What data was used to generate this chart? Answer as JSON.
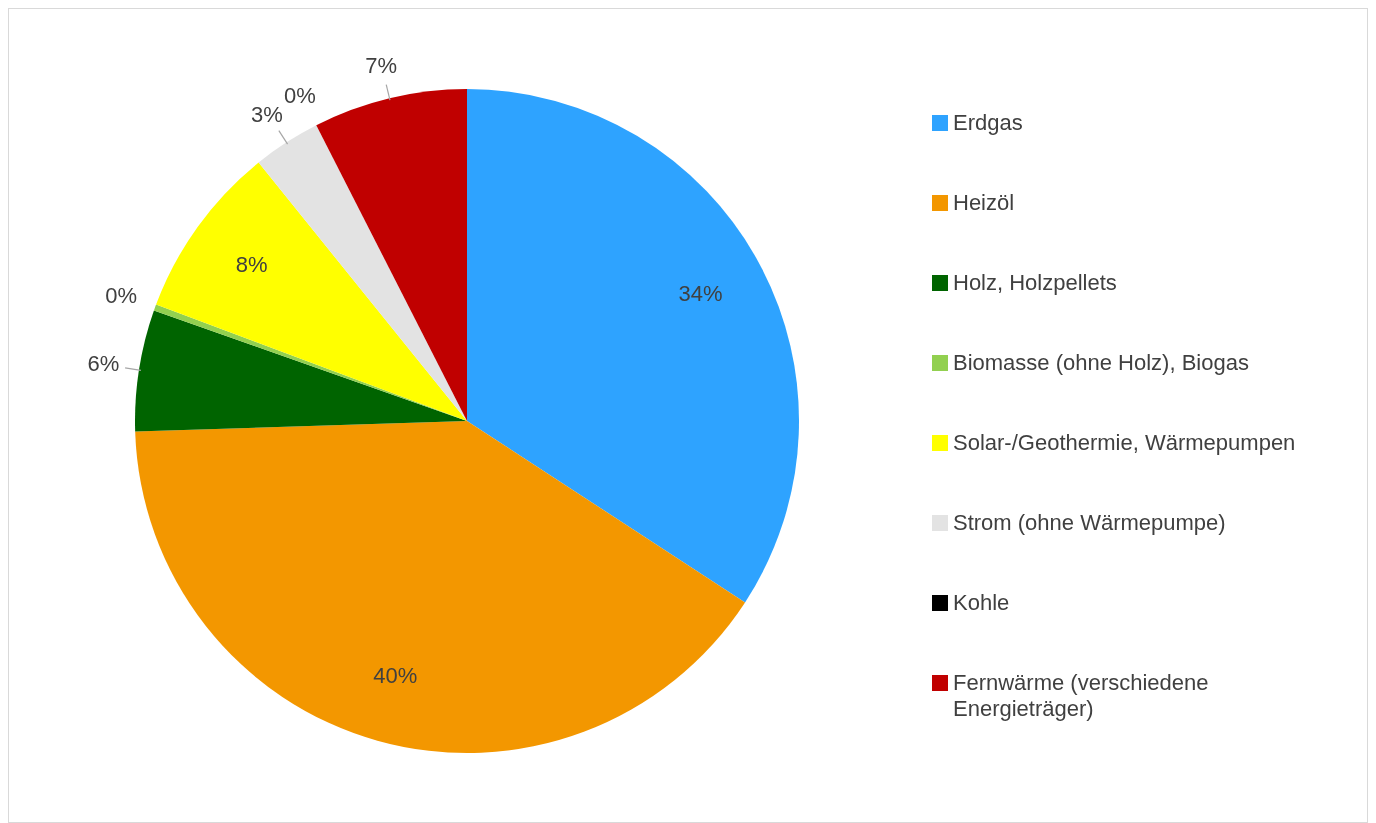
{
  "chart_data": {
    "type": "pie",
    "categories": [
      "Erdgas",
      "Heizöl",
      "Holz, Holzpellets",
      "Biomasse (ohne Holz), Biogas",
      "Solar-/Geothermie, Wärmepumpen",
      "Strom (ohne Wärmepumpe)",
      "Kohle",
      "Fernwärme (verschiedene Energieträger)"
    ],
    "values": [
      34.2,
      40.3,
      5.9,
      0.3,
      8.5,
      3.3,
      0,
      7.5
    ],
    "value_labels": [
      "34%",
      "40%",
      "6%",
      "0%",
      "8%",
      "3%",
      "0%",
      "7%"
    ],
    "colors": [
      "#2ea3ff",
      "#f39700",
      "#006400",
      "#92d050",
      "#ffff00",
      "#e3e3e3",
      "#000000",
      "#c00000"
    ],
    "legend": "right"
  }
}
